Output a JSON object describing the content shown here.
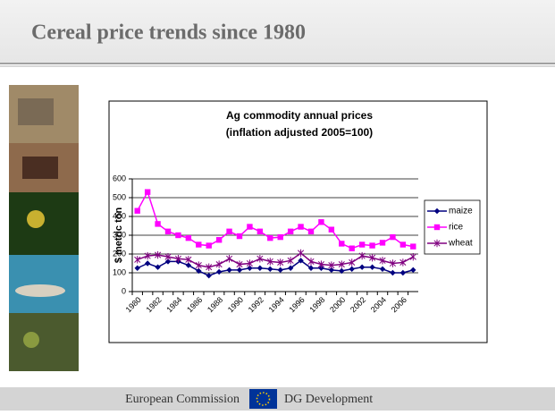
{
  "slide": {
    "title": "Cereal price trends since 1980",
    "footer": {
      "left": "European Commission",
      "right": "DG Development"
    }
  },
  "chart_data": {
    "type": "line",
    "title": "Ag commodity annual prices",
    "subtitle": "(inflation adjusted 2005=100)",
    "y_label": "$ metric ton",
    "categories": [
      "1980",
      null,
      "1982",
      null,
      "1984",
      null,
      "1986",
      null,
      "1988",
      null,
      "1990",
      null,
      "1992",
      null,
      "1994",
      null,
      "1996",
      null,
      "1998",
      null,
      "2000",
      null,
      "2002",
      null,
      "2004",
      null,
      "2006",
      null
    ],
    "series": [
      {
        "name": "maize",
        "color": "#000080",
        "marker": "diamond",
        "values": [
          125,
          150,
          130,
          160,
          160,
          140,
          110,
          85,
          105,
          115,
          115,
          125,
          125,
          120,
          115,
          125,
          165,
          125,
          125,
          115,
          110,
          120,
          130,
          130,
          120,
          100,
          100,
          115
        ]
      },
      {
        "name": "rice",
        "color": "#ff00ff",
        "marker": "square",
        "values": [
          430,
          530,
          360,
          320,
          300,
          285,
          250,
          245,
          275,
          320,
          295,
          345,
          320,
          285,
          290,
          320,
          345,
          320,
          370,
          330,
          255,
          230,
          250,
          245,
          260,
          290,
          250,
          240
        ]
      },
      {
        "name": "wheat",
        "color": "#800080",
        "marker": "asterisk",
        "values": [
          170,
          190,
          195,
          185,
          175,
          170,
          140,
          130,
          145,
          175,
          145,
          150,
          175,
          160,
          155,
          165,
          205,
          160,
          145,
          140,
          145,
          155,
          190,
          180,
          165,
          150,
          155,
          185
        ]
      }
    ],
    "ylim": [
      0,
      600
    ],
    "yticks": [
      0,
      100,
      200,
      300,
      400,
      500,
      600
    ],
    "grid": true,
    "legend": "right"
  }
}
